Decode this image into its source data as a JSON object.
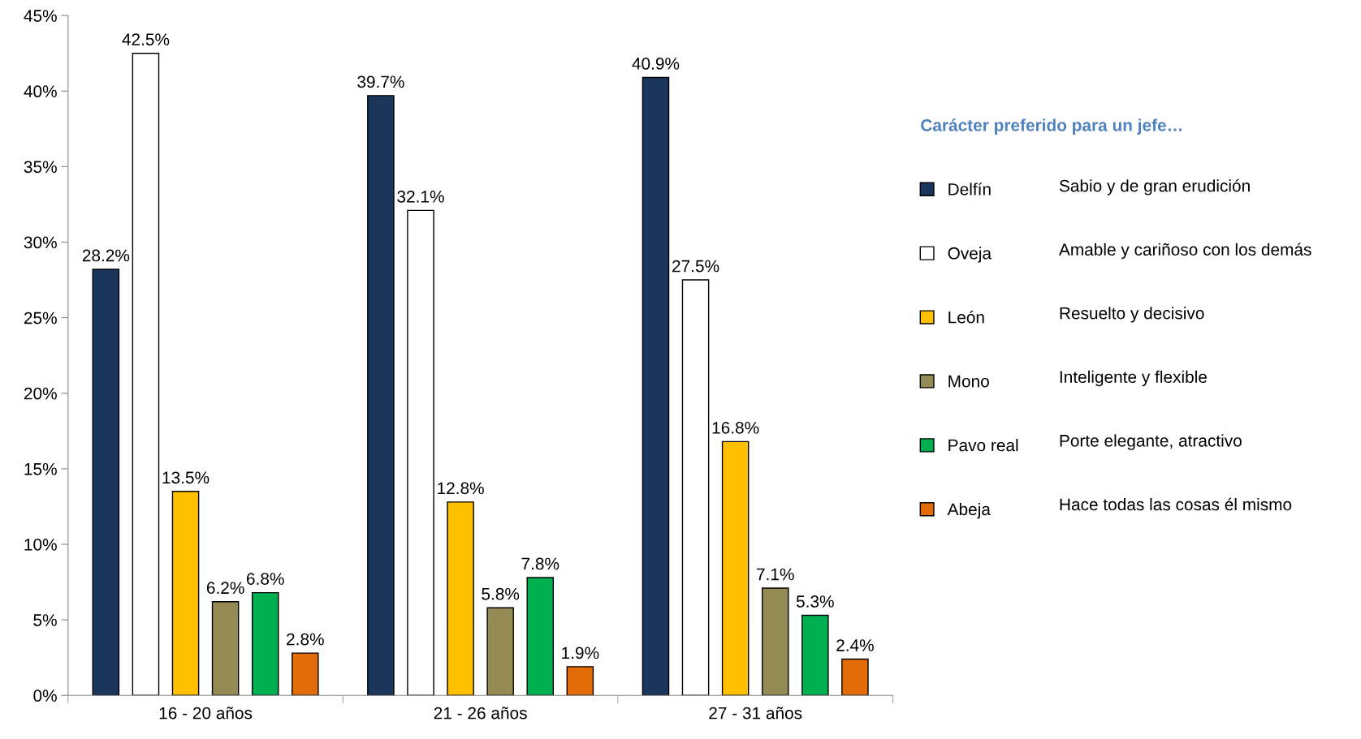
{
  "chart_data": {
    "type": "bar",
    "categories": [
      "16 - 20 años",
      "21 - 26 años",
      "27 - 31 años"
    ],
    "series": [
      {
        "name": "Delfín",
        "color": "#1b365d",
        "values": [
          28.2,
          39.7,
          40.9
        ],
        "value_labels": [
          "28.2%",
          "39.7%",
          "40.9%"
        ]
      },
      {
        "name": "Oveja",
        "color": "#ffffff",
        "values": [
          42.5,
          32.1,
          27.5
        ],
        "value_labels": [
          "42.5%",
          "32.1%",
          "27.5%"
        ]
      },
      {
        "name": "León",
        "color": "#ffc000",
        "values": [
          13.5,
          12.8,
          16.8
        ],
        "value_labels": [
          "13.5%",
          "12.8%",
          "16.8%"
        ]
      },
      {
        "name": "Mono",
        "color": "#948a54",
        "values": [
          6.2,
          5.8,
          7.1
        ],
        "value_labels": [
          "6.2%",
          "5.8%",
          "7.1%"
        ]
      },
      {
        "name": "Pavo real",
        "color": "#00b050",
        "values": [
          6.8,
          7.8,
          5.3
        ],
        "value_labels": [
          "6.8%",
          "7.8%",
          "5.3%"
        ]
      },
      {
        "name": "Abeja",
        "color": "#e36c09",
        "values": [
          2.8,
          1.9,
          2.4
        ],
        "value_labels": [
          "2.8%",
          "1.9%",
          "2.4%"
        ]
      }
    ],
    "ylim": [
      0,
      45
    ],
    "yticks": [
      {
        "value": 0,
        "label": "0%"
      },
      {
        "value": 5,
        "label": "5%"
      },
      {
        "value": 10,
        "label": "10%"
      },
      {
        "value": 15,
        "label": "15%"
      },
      {
        "value": 20,
        "label": "20%"
      },
      {
        "value": 25,
        "label": "25%"
      },
      {
        "value": 30,
        "label": "30%"
      },
      {
        "value": 35,
        "label": "35%"
      },
      {
        "value": 40,
        "label": "40%"
      },
      {
        "value": 45,
        "label": "45%"
      }
    ],
    "legend": "right",
    "legend_title": "Carácter preferido para un jefe…",
    "grid": false,
    "annotations": [
      "Sabio y de gran erudición",
      "Amable y cariñoso con los demás",
      "Resuelto y decisivo",
      "Inteligente y flexible",
      "Porte elegante, atractivo",
      "Hace todas las cosas él mismo"
    ]
  }
}
